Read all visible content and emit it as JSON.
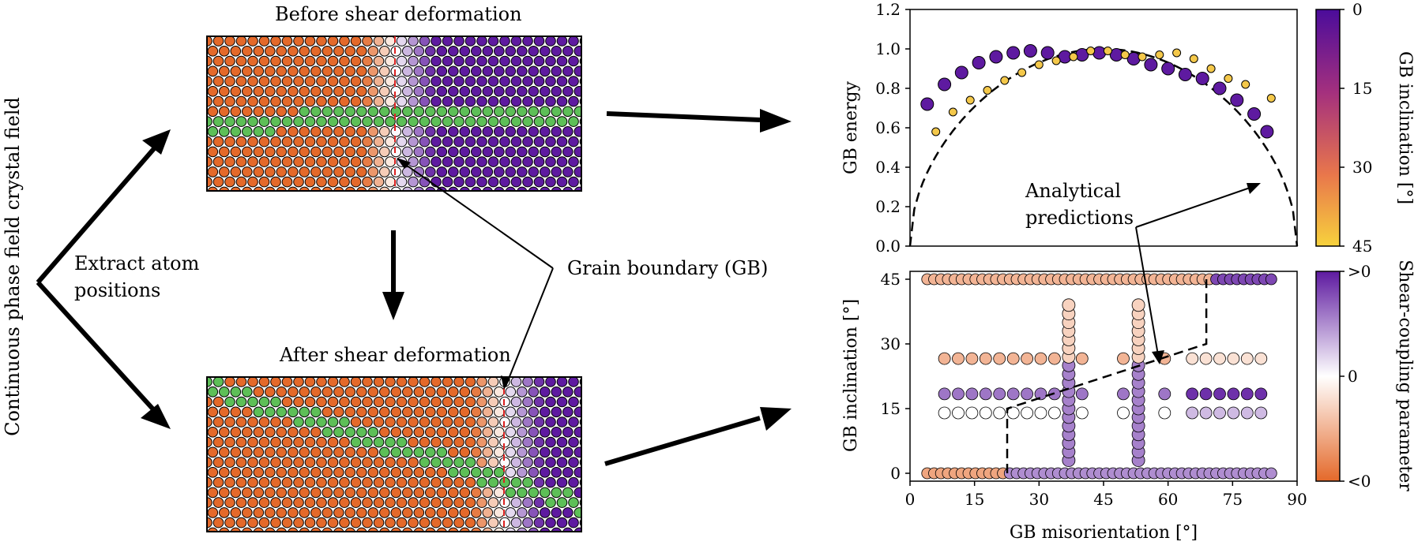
{
  "left_panel": {
    "vertical_title": "Continuous phase field crystal field",
    "extract_line1": "Extract atom",
    "extract_line2": "positions",
    "before_title": "Before shear deformation",
    "after_title": "After shear deformation",
    "gb_label": "Grain boundary (GB)",
    "colors": {
      "grain_a": "#e4692a",
      "grain_b": "#5e1aa0",
      "strip": "#5dbf57"
    }
  },
  "top_plot": {
    "ylabel": "GB energy",
    "yticks": [
      "0.0",
      "0.2",
      "0.4",
      "0.6",
      "0.8",
      "1.0",
      "1.2"
    ],
    "annotation_line1": "Analytical",
    "annotation_line2": "predictions",
    "colorbar_label": "GB inclination [°]",
    "colorbar_ticks": [
      "0",
      "15",
      "30",
      "45"
    ]
  },
  "bottom_plot": {
    "ylabel": "GB inclination [°]",
    "yticks": [
      "0",
      "15",
      "30",
      "45"
    ],
    "xlabel": "GB misorientation [°]",
    "xticks": [
      "0",
      "15",
      "30",
      "45",
      "60",
      "75",
      "90"
    ],
    "colorbar_label": "Shear-coupling parameter",
    "colorbar_ticks": [
      ">0",
      "0",
      "<0"
    ]
  },
  "chart_data": [
    {
      "type": "scatter",
      "xlabel": "",
      "ylabel": "GB energy",
      "xlim": [
        0,
        90
      ],
      "ylim": [
        0,
        1.2
      ],
      "series": [
        {
          "values": [
            [
              4,
              0.72
            ],
            [
              8,
              0.82
            ],
            [
              12,
              0.88
            ],
            [
              16,
              0.93
            ],
            [
              20,
              0.96
            ],
            [
              24,
              0.98
            ],
            [
              28,
              0.99
            ],
            [
              32,
              0.98
            ],
            [
              36,
              0.96
            ],
            [
              40,
              0.97
            ],
            [
              44,
              0.98
            ],
            [
              48,
              0.97
            ],
            [
              52,
              0.95
            ],
            [
              56,
              0.92
            ],
            [
              60,
              0.9
            ],
            [
              64,
              0.87
            ],
            [
              68,
              0.85
            ],
            [
              72,
              0.8
            ],
            [
              76,
              0.74
            ],
            [
              80,
              0.67
            ],
            [
              83,
              0.58
            ]
          ]
        },
        {
          "values": [
            [
              6,
              0.58
            ],
            [
              10,
              0.68
            ],
            [
              14,
              0.74
            ],
            [
              18,
              0.79
            ],
            [
              22,
              0.84
            ],
            [
              26,
              0.88
            ],
            [
              30,
              0.92
            ],
            [
              34,
              0.94
            ],
            [
              38,
              0.96
            ],
            [
              42,
              0.99
            ],
            [
              46,
              0.99
            ],
            [
              50,
              0.97
            ],
            [
              54,
              0.96
            ],
            [
              58,
              0.97
            ],
            [
              62,
              0.98
            ],
            [
              66,
              0.95
            ],
            [
              70,
              0.9
            ],
            [
              74,
              0.85
            ],
            [
              78,
              0.82
            ],
            [
              84,
              0.75
            ]
          ]
        }
      ],
      "prediction_curve": [
        [
          0,
          0
        ],
        [
          10,
          0.6
        ],
        [
          20,
          0.82
        ],
        [
          30,
          0.94
        ],
        [
          45,
          1.0
        ],
        [
          60,
          0.94
        ],
        [
          70,
          0.82
        ],
        [
          80,
          0.6
        ],
        [
          90,
          0
        ]
      ]
    },
    {
      "type": "scatter",
      "xlabel": "GB misorientation [°]",
      "ylabel": "GB inclination [°]",
      "xlim": [
        0,
        90
      ],
      "ylim": [
        0,
        45
      ],
      "prediction_curve": [
        [
          22.6,
          0
        ],
        [
          22.6,
          15
        ],
        [
          68.9,
          30
        ],
        [
          68.9,
          45
        ]
      ]
    }
  ]
}
